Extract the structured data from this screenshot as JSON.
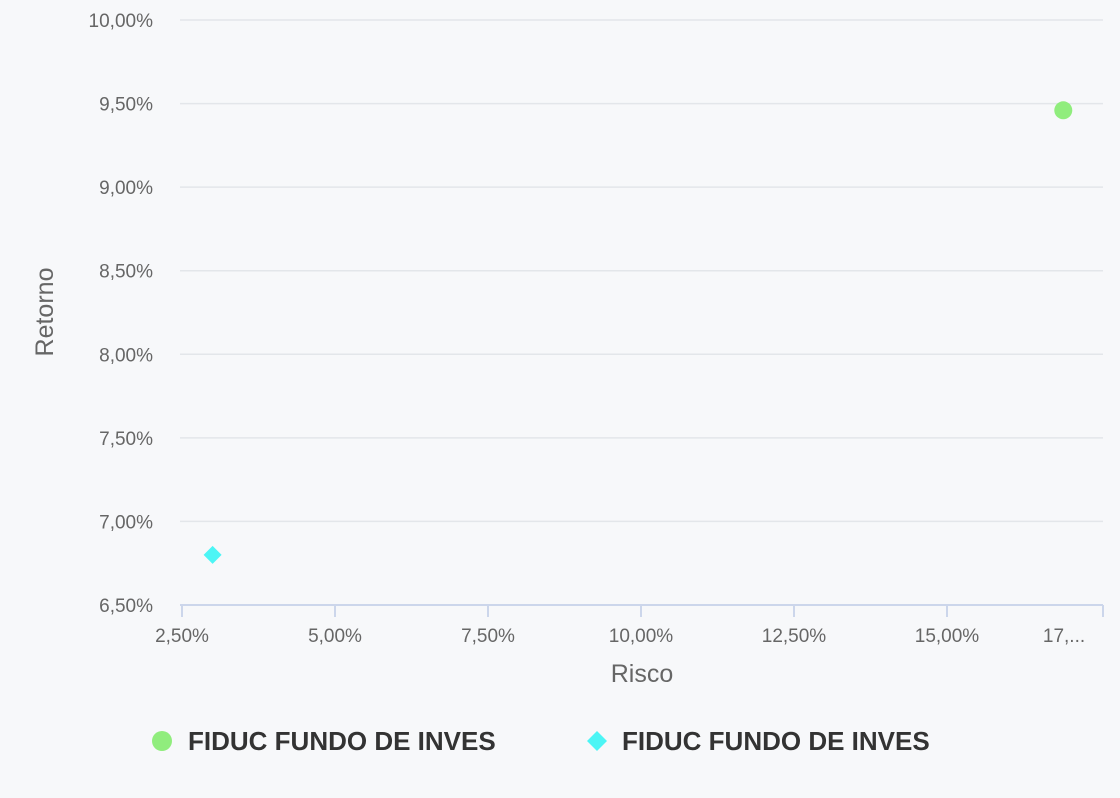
{
  "chart_data": {
    "type": "scatter",
    "title": "",
    "xlabel": "Risco",
    "ylabel": "Retorno",
    "xlim": [
      2.5,
      17.5
    ],
    "ylim": [
      6.5,
      10.0
    ],
    "x_ticks": [
      {
        "value": 2.5,
        "label": "2,50%"
      },
      {
        "value": 5.0,
        "label": "5,00%"
      },
      {
        "value": 7.5,
        "label": "7,50%"
      },
      {
        "value": 10.0,
        "label": "10,00%"
      },
      {
        "value": 12.5,
        "label": "12,50%"
      },
      {
        "value": 15.0,
        "label": "15,00%"
      },
      {
        "value": 17.5,
        "label": "17,..."
      }
    ],
    "y_ticks": [
      {
        "value": 6.5,
        "label": "6,50%"
      },
      {
        "value": 7.0,
        "label": "7,00%"
      },
      {
        "value": 7.5,
        "label": "7,50%"
      },
      {
        "value": 8.0,
        "label": "8,00%"
      },
      {
        "value": 8.5,
        "label": "8,50%"
      },
      {
        "value": 9.0,
        "label": "9,00%"
      },
      {
        "value": 9.5,
        "label": "9,50%"
      },
      {
        "value": 10.0,
        "label": "10,00%"
      }
    ],
    "grid": true,
    "legend_position": "bottom",
    "series": [
      {
        "name": "FIDUC FUNDO DE INVES",
        "color": "#90ed7d",
        "marker": "circle",
        "points": [
          {
            "x": 16.9,
            "y": 9.46
          }
        ]
      },
      {
        "name": "FIDUC FUNDO DE INVES",
        "color": "#4cf5f5",
        "marker": "diamond",
        "points": [
          {
            "x": 3.0,
            "y": 6.8
          }
        ]
      }
    ]
  }
}
